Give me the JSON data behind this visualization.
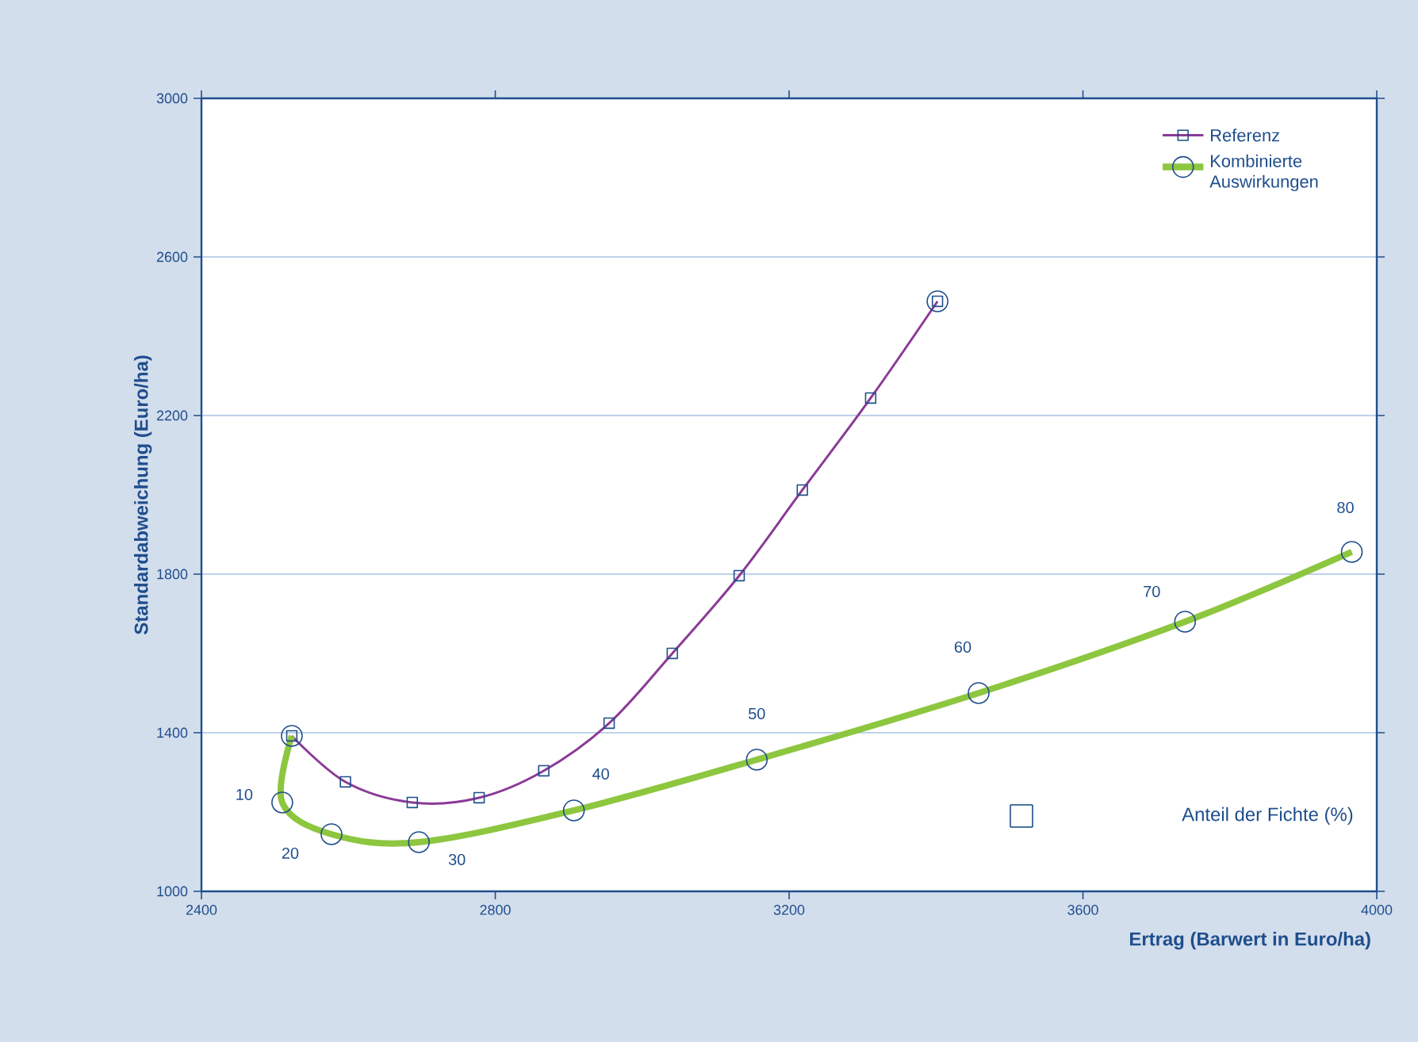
{
  "chart_data": {
    "type": "line",
    "xlabel": "Ertrag (Barwert in Euro/ha)",
    "ylabel": "Standardabweichung (Euro/ha)",
    "xlim": [
      2400,
      4000
    ],
    "xticks": [
      2400,
      2800,
      3200,
      3600,
      4000
    ],
    "ylim": [
      1000,
      3000
    ],
    "yticks": [
      1000,
      1400,
      1800,
      2200,
      2600,
      3000
    ],
    "grid": "y",
    "legend": "top right",
    "series": [
      {
        "name": "Referenz",
        "color": "#8b3a96",
        "marker": "square",
        "x": [
          2523,
          2596,
          2687,
          2778,
          2866,
          2955,
          3041,
          3132,
          3218,
          3311,
          3402
        ],
        "values": [
          1392,
          1276,
          1224,
          1236,
          1304,
          1424,
          1600,
          1796,
          2012,
          2244,
          2488
        ]
      },
      {
        "name": "Kombinierte Auswirkungen",
        "color": "#8dc63f",
        "marker": "circle",
        "x": [
          2523,
          2510,
          2577,
          2696,
          2907,
          3156,
          3458,
          3739,
          3966
        ],
        "values": [
          1392,
          1224,
          1144,
          1124,
          1204,
          1332,
          1500,
          1680,
          1856
        ]
      },
      {
        "type": "scatter",
        "color": "#1f4e8c",
        "x": [
          3402
        ],
        "values": [
          2488
        ]
      }
    ],
    "annotations": [
      {
        "text": "10",
        "x": 2510,
        "y": 1224
      },
      {
        "text": "20",
        "x": 2577,
        "y": 1144
      },
      {
        "text": "30",
        "x": 2696,
        "y": 1124
      },
      {
        "text": "40",
        "x": 2907,
        "y": 1204
      },
      {
        "text": "50",
        "x": 3156,
        "y": 1332
      },
      {
        "text": "60",
        "x": 3458,
        "y": 1500
      },
      {
        "text": "70",
        "x": 3739,
        "y": 1680
      },
      {
        "text": "80",
        "x": 3966,
        "y": 1856
      },
      "Anteil der Fichte (%)"
    ]
  }
}
